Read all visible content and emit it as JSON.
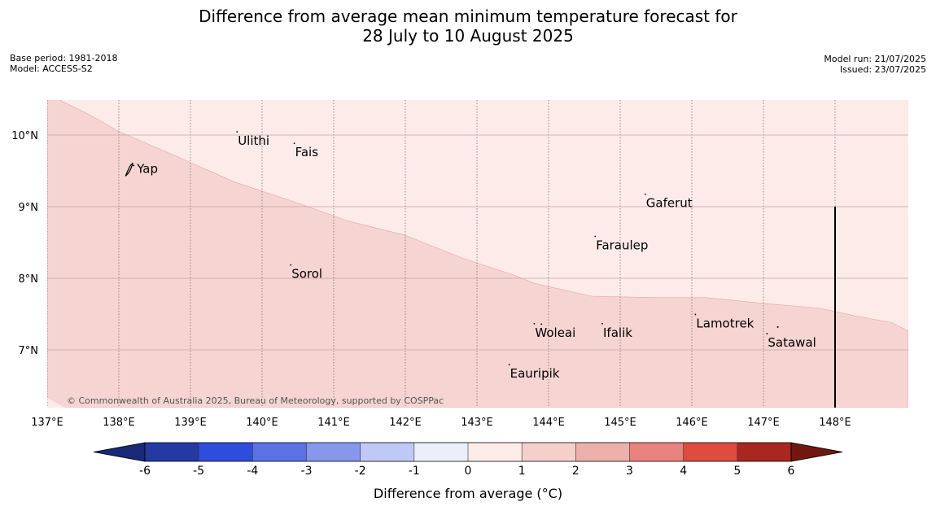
{
  "title": {
    "line1": "Difference from average mean minimum temperature forecast for",
    "line2": "28 July to 10 August 2025"
  },
  "meta": {
    "base_period": "Base period: 1981-2018",
    "model": "Model: ACCESS-S2",
    "model_run": "Model run: 21/07/2025",
    "issued": "Issued: 23/07/2025"
  },
  "map": {
    "lon_range": [
      137,
      149
    ],
    "lat_range": [
      6.3,
      10.5
    ],
    "lon_ticks": [
      {
        "value": 137,
        "label": "137°E"
      },
      {
        "value": 138,
        "label": "138°E"
      },
      {
        "value": 139,
        "label": "139°E"
      },
      {
        "value": 140,
        "label": "140°E"
      },
      {
        "value": 141,
        "label": "141°E"
      },
      {
        "value": 142,
        "label": "142°E"
      },
      {
        "value": 143,
        "label": "143°E"
      },
      {
        "value": 144,
        "label": "144°E"
      },
      {
        "value": 145,
        "label": "145°E"
      },
      {
        "value": 146,
        "label": "146°E"
      },
      {
        "value": 147,
        "label": "147°E"
      },
      {
        "value": 148,
        "label": "148°E"
      }
    ],
    "lat_ticks": [
      {
        "value": 10,
        "label": "10°N"
      },
      {
        "value": 9,
        "label": "9°N"
      },
      {
        "value": 8,
        "label": "8°N"
      },
      {
        "value": 7,
        "label": "7°N"
      }
    ],
    "region_colors": {
      "anomaly_0_1": "#fcebe8",
      "anomaly_1_2": "#f6d4d1"
    },
    "boundary_lonlat": [
      [
        137.15,
        10.5
      ],
      [
        137.6,
        10.28
      ],
      [
        138.0,
        10.05
      ],
      [
        138.7,
        9.75
      ],
      [
        139.6,
        9.35
      ],
      [
        140.5,
        9.05
      ],
      [
        141.2,
        8.8
      ],
      [
        142.0,
        8.6
      ],
      [
        142.8,
        8.28
      ],
      [
        143.5,
        8.05
      ],
      [
        143.8,
        7.93
      ],
      [
        144.6,
        7.75
      ],
      [
        145.5,
        7.73
      ],
      [
        146.2,
        7.73
      ],
      [
        147.0,
        7.65
      ],
      [
        147.8,
        7.58
      ],
      [
        148.3,
        7.47
      ],
      [
        148.8,
        7.38
      ],
      [
        149.0,
        7.27
      ]
    ],
    "islands": [
      {
        "name": "Yap",
        "lon": 138.15,
        "lat": 9.53
      },
      {
        "name": "Ulithi",
        "lon": 139.65,
        "lat": 9.92
      },
      {
        "name": "Fais",
        "lon": 140.45,
        "lat": 9.76
      },
      {
        "name": "Gaferut",
        "lon": 145.35,
        "lat": 9.05
      },
      {
        "name": "Faraulep",
        "lon": 144.65,
        "lat": 8.46
      },
      {
        "name": "Sorol",
        "lon": 140.4,
        "lat": 8.06
      },
      {
        "name": "Lamotrek",
        "lon": 146.05,
        "lat": 7.37
      },
      {
        "name": "Woleai",
        "lon": 143.8,
        "lat": 7.24
      },
      {
        "name": "Ifalik",
        "lon": 144.75,
        "lat": 7.24
      },
      {
        "name": "Satawal",
        "lon": 147.05,
        "lat": 7.1
      },
      {
        "name": "Eauripik",
        "lon": 143.45,
        "lat": 6.67
      }
    ],
    "marker_line": {
      "lon": 148,
      "lat_top": 9.0
    },
    "copyright": "© Commonwealth of Australia 2025, Bureau of Meteorology, supported by COSPPac"
  },
  "colorbar": {
    "label": "Difference from average (°C)",
    "ticks": [
      "-6",
      "-5",
      "-4",
      "-3",
      "-2",
      "-1",
      "0",
      "1",
      "2",
      "3",
      "4",
      "5",
      "6"
    ],
    "colors": [
      "#2539a3",
      "#2f4ddc",
      "#5a72e4",
      "#8797ec",
      "#c0c8f5",
      "#eceef9",
      "#fdebe8",
      "#f4cfcb",
      "#eeb0aa",
      "#e8827c",
      "#de4b3f",
      "#aa2620"
    ],
    "low_extend_color": "#1a2877",
    "high_extend_color": "#701810"
  }
}
